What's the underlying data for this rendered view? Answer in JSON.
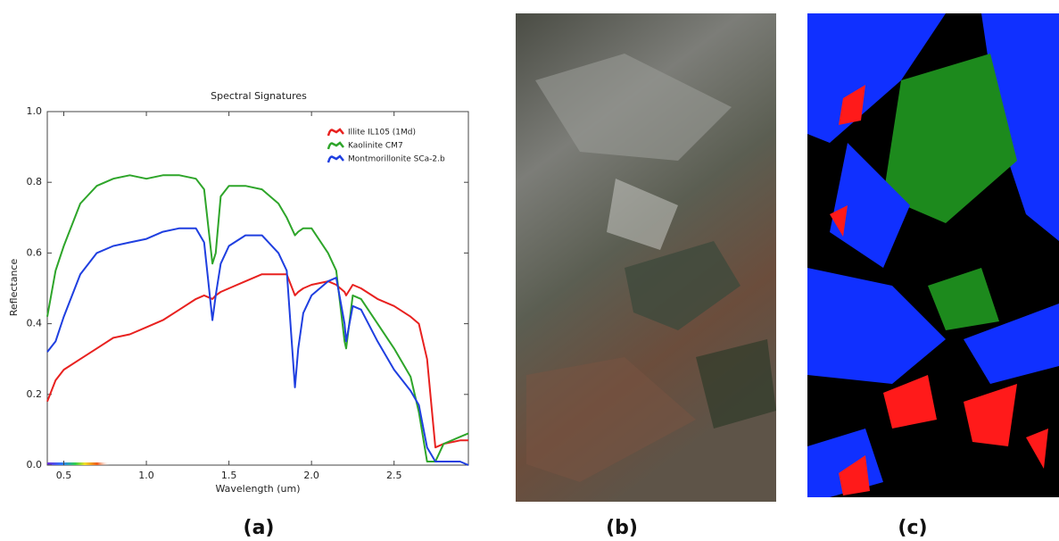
{
  "chart_data": {
    "type": "line",
    "title": "Spectral Signatures",
    "x_label": "Wavelength (um)",
    "y_label": "Reflectance",
    "x": [
      0.4,
      0.45,
      0.5,
      0.6,
      0.7,
      0.8,
      0.9,
      1.0,
      1.1,
      1.2,
      1.3,
      1.35,
      1.4,
      1.42,
      1.45,
      1.5,
      1.6,
      1.7,
      1.8,
      1.85,
      1.9,
      1.92,
      1.95,
      2.0,
      2.1,
      2.15,
      2.2,
      2.21,
      2.25,
      2.3,
      2.4,
      2.5,
      2.6,
      2.65,
      2.7,
      2.75,
      2.8,
      2.9,
      2.95
    ],
    "series": [
      {
        "name": "Illite IL105 (1Md)",
        "color": "#e8211f",
        "values": [
          0.18,
          0.24,
          0.27,
          0.3,
          0.33,
          0.36,
          0.37,
          0.39,
          0.41,
          0.44,
          0.47,
          0.48,
          0.47,
          0.48,
          0.49,
          0.5,
          0.52,
          0.54,
          0.54,
          0.54,
          0.48,
          0.49,
          0.5,
          0.51,
          0.52,
          0.51,
          0.49,
          0.48,
          0.51,
          0.5,
          0.47,
          0.45,
          0.42,
          0.4,
          0.3,
          0.05,
          0.06,
          0.07,
          0.07
        ]
      },
      {
        "name": "Kaolinite CM7",
        "color": "#2ea52a",
        "values": [
          0.42,
          0.55,
          0.62,
          0.74,
          0.79,
          0.81,
          0.82,
          0.81,
          0.82,
          0.82,
          0.81,
          0.78,
          0.57,
          0.6,
          0.76,
          0.79,
          0.79,
          0.78,
          0.74,
          0.7,
          0.65,
          0.66,
          0.67,
          0.67,
          0.6,
          0.55,
          0.35,
          0.33,
          0.48,
          0.47,
          0.4,
          0.33,
          0.25,
          0.15,
          0.01,
          0.01,
          0.06,
          0.08,
          0.09
        ]
      },
      {
        "name": "Montmorillonite SCa-2.b",
        "color": "#1f3fe0",
        "values": [
          0.32,
          0.35,
          0.42,
          0.54,
          0.6,
          0.62,
          0.63,
          0.64,
          0.66,
          0.67,
          0.67,
          0.63,
          0.41,
          0.48,
          0.57,
          0.62,
          0.65,
          0.65,
          0.6,
          0.55,
          0.22,
          0.33,
          0.43,
          0.48,
          0.52,
          0.53,
          0.4,
          0.35,
          0.45,
          0.44,
          0.35,
          0.27,
          0.21,
          0.17,
          0.05,
          0.01,
          0.01,
          0.01,
          0.0
        ]
      }
    ],
    "xlim": [
      0.4,
      2.95
    ],
    "ylim": [
      0,
      1
    ],
    "xticks": [
      0.5,
      {
        "value": 1,
        "label": "1.0"
      },
      1.5,
      {
        "value": 2,
        "label": "2.0"
      },
      2.5
    ],
    "yticks": [
      {
        "value": 0,
        "label": "0.0"
      },
      0.2,
      0.4,
      0.6,
      0.8,
      {
        "value": 1,
        "label": "1.0"
      }
    ],
    "legend": "upper right"
  },
  "panels": {
    "labels": [
      "(a)",
      "(b)",
      "(c)"
    ]
  }
}
